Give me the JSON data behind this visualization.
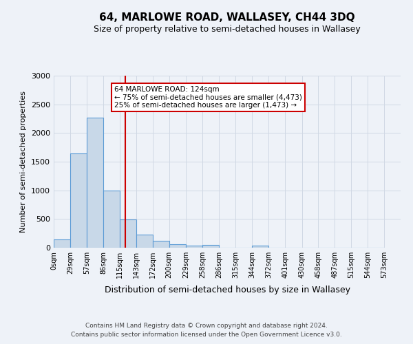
{
  "title": "64, MARLOWE ROAD, WALLASEY, CH44 3DQ",
  "subtitle": "Size of property relative to semi-detached houses in Wallasey",
  "xlabel": "Distribution of semi-detached houses by size in Wallasey",
  "ylabel": "Number of semi-detached properties",
  "footer_line1": "Contains HM Land Registry data © Crown copyright and database right 2024.",
  "footer_line2": "Contains public sector information licensed under the Open Government Licence v3.0.",
  "annotation_title": "64 MARLOWE ROAD: 124sqm",
  "annotation_line1": "← 75% of semi-detached houses are smaller (4,473)",
  "annotation_line2": "25% of semi-detached houses are larger (1,473) →",
  "property_size_sqm": 124,
  "bar_left_edges": [
    0,
    29,
    57,
    86,
    115,
    143,
    172,
    200,
    229,
    258,
    286,
    315,
    344,
    372,
    401,
    430,
    458,
    487,
    515,
    544
  ],
  "bar_width": 28.5,
  "bar_heights": [
    150,
    1640,
    2270,
    1000,
    490,
    230,
    125,
    55,
    40,
    50,
    0,
    0,
    40,
    0,
    0,
    0,
    0,
    0,
    0,
    0
  ],
  "bar_color": "#c8d8e8",
  "bar_edge_color": "#5b9bd5",
  "grid_color": "#d0d8e4",
  "vline_color": "#cc0000",
  "annotation_box_color": "#cc0000",
  "ylim": [
    0,
    3000
  ],
  "yticks": [
    0,
    500,
    1000,
    1500,
    2000,
    2500,
    3000
  ],
  "xtick_labels": [
    "0sqm",
    "29sqm",
    "57sqm",
    "86sqm",
    "115sqm",
    "143sqm",
    "172sqm",
    "200sqm",
    "229sqm",
    "258sqm",
    "286sqm",
    "315sqm",
    "344sqm",
    "372sqm",
    "401sqm",
    "430sqm",
    "458sqm",
    "487sqm",
    "515sqm",
    "544sqm",
    "573sqm"
  ],
  "background_color": "#eef2f8",
  "plot_background_color": "#eef2f8"
}
